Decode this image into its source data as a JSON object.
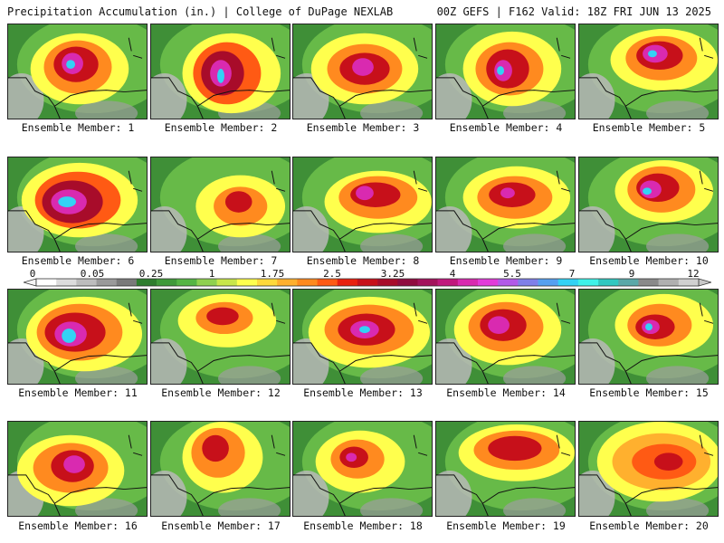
{
  "header": {
    "left_title": "Precipitation Accumulation (in.) | College of DuPage NEXLAB",
    "right_title": "00Z GEFS | F162 Valid: 18Z FRI JUN 13 2025"
  },
  "colorbar": {
    "tick_labels": [
      "0",
      "0.05",
      "0.25",
      "1",
      "1.75",
      "2.5",
      "3.25",
      "4",
      "5.5",
      "7",
      "9",
      "12"
    ],
    "colors": [
      "#ffffff",
      "#dcdcdc",
      "#bdbdbd",
      "#9a9a9a",
      "#7a7a7a",
      "#2e7d2e",
      "#3f9a3a",
      "#55b544",
      "#8fd14f",
      "#c8e64a",
      "#ffff4d",
      "#ffd93b",
      "#ffb02e",
      "#ff8a1f",
      "#ff5a14",
      "#e8200f",
      "#c7101a",
      "#a80c2a",
      "#900c3f",
      "#a3125c",
      "#c0187d",
      "#d92ab0",
      "#e23cda",
      "#b25ae8",
      "#7f7fe8",
      "#55a0f0",
      "#33d2f5",
      "#3ff2e8",
      "#30c8c0",
      "#5aa8a8",
      "#8a8a8a",
      "#b0b0b0",
      "#d0d0d0"
    ]
  },
  "members": [
    {
      "label": "Ensemble Member: 1"
    },
    {
      "label": "Ensemble Member: 2"
    },
    {
      "label": "Ensemble Member: 3"
    },
    {
      "label": "Ensemble Member: 4"
    },
    {
      "label": "Ensemble Member: 5"
    },
    {
      "label": "Ensemble Member: 6"
    },
    {
      "label": "Ensemble Member: 7"
    },
    {
      "label": "Ensemble Member: 8"
    },
    {
      "label": "Ensemble Member: 9"
    },
    {
      "label": "Ensemble Member: 10"
    },
    {
      "label": "Ensemble Member: 11"
    },
    {
      "label": "Ensemble Member: 12"
    },
    {
      "label": "Ensemble Member: 13"
    },
    {
      "label": "Ensemble Member: 14"
    },
    {
      "label": "Ensemble Member: 15"
    },
    {
      "label": "Ensemble Member: 16"
    },
    {
      "label": "Ensemble Member: 17"
    },
    {
      "label": "Ensemble Member: 18"
    },
    {
      "label": "Ensemble Member: 19"
    },
    {
      "label": "Ensemble Member: 20"
    }
  ]
}
